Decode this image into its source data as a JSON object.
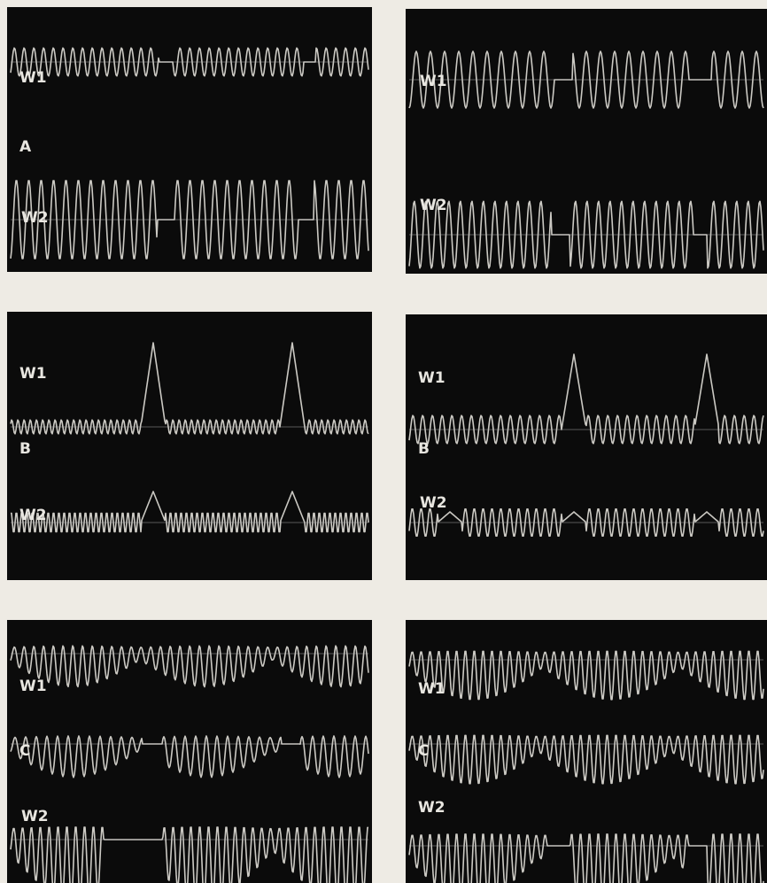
{
  "panels": [
    {
      "labels": [
        "W1",
        "A",
        "W2"
      ]
    },
    {
      "labels": [
        "W1",
        "W2"
      ]
    },
    {
      "labels": [
        "W1",
        "B",
        "W2"
      ]
    },
    {
      "labels": [
        "W1",
        "B",
        "W2"
      ]
    },
    {
      "labels": [
        "W1",
        "C",
        "W2"
      ]
    },
    {
      "labels": [
        "W1",
        "C",
        "W2"
      ]
    }
  ]
}
